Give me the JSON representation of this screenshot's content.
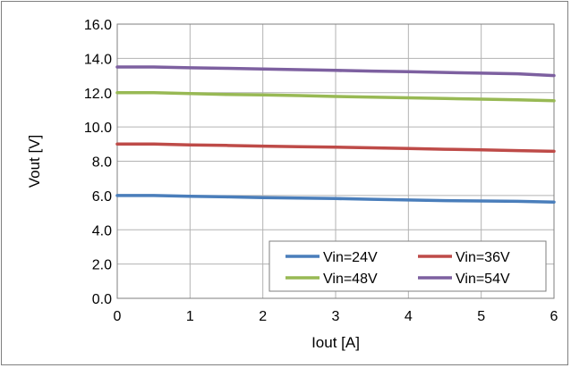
{
  "chart_data": {
    "type": "line",
    "title": "",
    "xlabel": "Iout [A]",
    "ylabel": "Vout [V]",
    "xlim": [
      0,
      6
    ],
    "ylim": [
      0,
      16
    ],
    "x_ticks": [
      0,
      1,
      2,
      3,
      4,
      5,
      6
    ],
    "x_tick_labels": [
      "0",
      "1",
      "2",
      "3",
      "4",
      "5",
      "6"
    ],
    "y_ticks": [
      0,
      2,
      4,
      6,
      8,
      10,
      12,
      14,
      16
    ],
    "y_tick_labels": [
      "0.0",
      "2.0",
      "4.0",
      "6.0",
      "8.0",
      "10.0",
      "12.0",
      "14.0",
      "16.0"
    ],
    "grid": true,
    "legend_position": "bottom-right",
    "series": [
      {
        "name": "Vin=24V",
        "color": "#4a7ebb",
        "x": [
          0,
          0.5,
          1,
          1.5,
          2,
          2.5,
          3,
          3.5,
          4,
          4.5,
          5,
          5.5,
          6
        ],
        "y": [
          6.0,
          6.0,
          5.95,
          5.92,
          5.88,
          5.85,
          5.82,
          5.78,
          5.74,
          5.7,
          5.68,
          5.66,
          5.62
        ]
      },
      {
        "name": "Vin=36V",
        "color": "#be4b48",
        "x": [
          0,
          0.5,
          1,
          1.5,
          2,
          2.5,
          3,
          3.5,
          4,
          4.5,
          5,
          5.5,
          6
        ],
        "y": [
          9.0,
          9.0,
          8.95,
          8.92,
          8.88,
          8.85,
          8.82,
          8.78,
          8.74,
          8.7,
          8.66,
          8.62,
          8.58
        ]
      },
      {
        "name": "Vin=48V",
        "color": "#98b954",
        "x": [
          0,
          0.5,
          1,
          1.5,
          2,
          2.5,
          3,
          3.5,
          4,
          4.5,
          5,
          5.5,
          6
        ],
        "y": [
          12.0,
          12.0,
          11.95,
          11.9,
          11.87,
          11.83,
          11.78,
          11.74,
          11.7,
          11.66,
          11.62,
          11.58,
          11.53
        ]
      },
      {
        "name": "Vin=54V",
        "color": "#7d60a0",
        "x": [
          0,
          0.5,
          1,
          1.5,
          2,
          2.5,
          3,
          3.5,
          4,
          4.5,
          5,
          5.5,
          6
        ],
        "y": [
          13.5,
          13.5,
          13.45,
          13.42,
          13.38,
          13.34,
          13.3,
          13.26,
          13.22,
          13.18,
          13.14,
          13.1,
          13.0
        ]
      }
    ]
  },
  "colors": {
    "grid": "#b3b3b3",
    "plot_border": "#7f7f7f",
    "frame_border": "#7f7f7f"
  }
}
